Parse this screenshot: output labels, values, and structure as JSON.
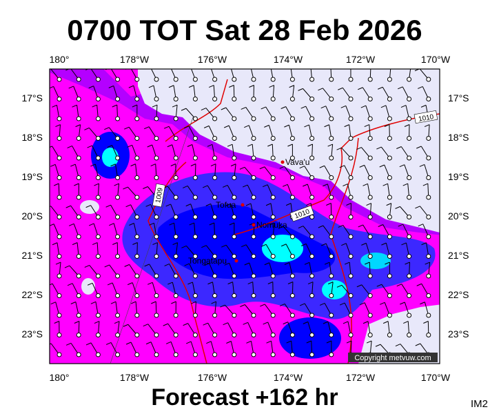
{
  "title": "0700 TOT Sat 28 Feb 2026",
  "footer": "Forecast +162 hr",
  "corner_label": "IM2",
  "map": {
    "lon_labels": [
      "180°",
      "178°W",
      "176°W",
      "174°W",
      "172°W",
      "170°W"
    ],
    "lat_labels": [
      "17°S",
      "18°S",
      "19°S",
      "20°S",
      "21°S",
      "22°S",
      "23°S"
    ],
    "places": [
      "Vava'u",
      "Tofua",
      "Nomuka",
      "Tongatapu"
    ],
    "isobar_labels": [
      "1010",
      "1009",
      "1010"
    ],
    "copyright": "Copyright metvuw.com"
  }
}
